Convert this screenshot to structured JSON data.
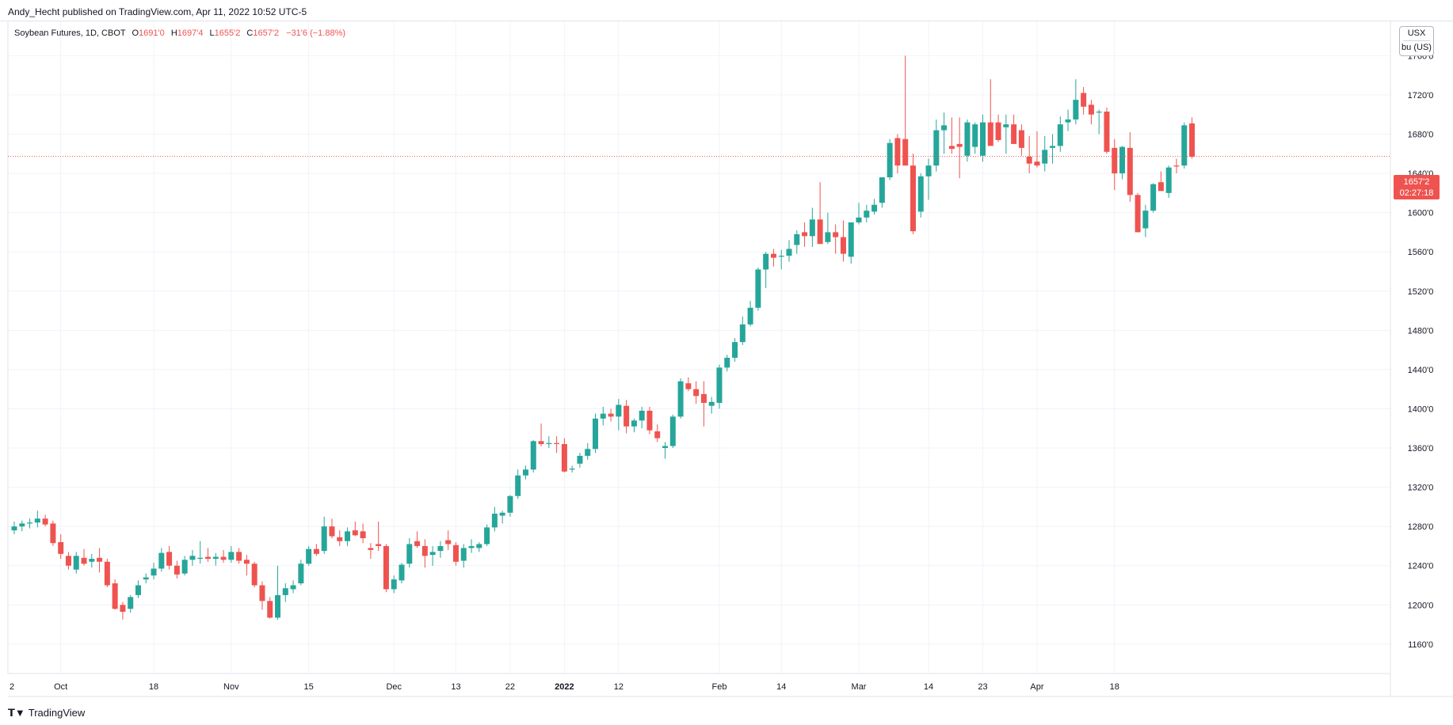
{
  "header": {
    "published": "Andy_Hecht published on TradingView.com, Apr 11, 2022 10:52 UTC-5"
  },
  "legend": {
    "symbol": "Soybean Futures, 1D, CBOT",
    "o_label": "O",
    "o_value": "1691'0",
    "h_label": "H",
    "h_value": "1697'4",
    "l_label": "L",
    "l_value": "1655'2",
    "c_label": "C",
    "c_value": "1657'2",
    "change": "−31'6 (−1.88%)"
  },
  "unit_box": {
    "currency": "USX",
    "unit": "bu (US)"
  },
  "last_price": {
    "price": "1657'2",
    "countdown": "02:27:18"
  },
  "footer": {
    "brand": "TradingView",
    "brand_icon": "tradingview-logo-icon"
  },
  "colors": {
    "up": "#26a69a",
    "down": "#ef5350",
    "grid": "#f0f3fa",
    "axis_text": "#131722"
  },
  "chart_data": {
    "type": "candlestick",
    "title": "Soybean Futures, 1D, CBOT",
    "ylabel": "USX / bu (US)",
    "ylim": [
      1130,
      1795
    ],
    "y_ticks": [
      {
        "value": 1160,
        "label": "1160'0"
      },
      {
        "value": 1200,
        "label": "1200'0"
      },
      {
        "value": 1240,
        "label": "1240'0"
      },
      {
        "value": 1280,
        "label": "1280'0"
      },
      {
        "value": 1320,
        "label": "1320'0"
      },
      {
        "value": 1360,
        "label": "1360'0"
      },
      {
        "value": 1400,
        "label": "1400'0"
      },
      {
        "value": 1440,
        "label": "1440'0"
      },
      {
        "value": 1480,
        "label": "1480'0"
      },
      {
        "value": 1520,
        "label": "1520'0"
      },
      {
        "value": 1560,
        "label": "1560'0"
      },
      {
        "value": 1600,
        "label": "1600'0"
      },
      {
        "value": 1640,
        "label": "1640'0"
      },
      {
        "value": 1680,
        "label": "1680'0"
      },
      {
        "value": 1720,
        "label": "1720'0"
      },
      {
        "value": 1760,
        "label": "1760'0"
      }
    ],
    "x_ticks": [
      {
        "index": -1,
        "label": "2"
      },
      {
        "index": 6,
        "label": "Oct"
      },
      {
        "index": 18,
        "label": "18"
      },
      {
        "index": 28,
        "label": "Nov"
      },
      {
        "index": 38,
        "label": "15"
      },
      {
        "index": 49,
        "label": "Dec"
      },
      {
        "index": 57,
        "label": "13"
      },
      {
        "index": 64,
        "label": "22"
      },
      {
        "index": 71,
        "label": "2022"
      },
      {
        "index": 78,
        "label": "12"
      },
      {
        "index": 91,
        "label": "Feb"
      },
      {
        "index": 99,
        "label": "14"
      },
      {
        "index": 109,
        "label": "Mar"
      },
      {
        "index": 118,
        "label": "14"
      },
      {
        "index": 125,
        "label": "23"
      },
      {
        "index": 132,
        "label": "Apr"
      },
      {
        "index": 142,
        "label": "18"
      }
    ],
    "last_price_value": 1657.25,
    "candles": [
      [
        1276,
        1285,
        1272,
        1280
      ],
      [
        1280,
        1286,
        1275,
        1283
      ],
      [
        1283,
        1288,
        1278,
        1284
      ],
      [
        1284,
        1296,
        1279,
        1288
      ],
      [
        1288,
        1292,
        1280,
        1282
      ],
      [
        1283,
        1286,
        1260,
        1263
      ],
      [
        1264,
        1272,
        1247,
        1252
      ],
      [
        1250,
        1254,
        1236,
        1240
      ],
      [
        1236,
        1254,
        1232,
        1250
      ],
      [
        1248,
        1257,
        1240,
        1242
      ],
      [
        1244,
        1252,
        1238,
        1247
      ],
      [
        1248,
        1258,
        1233,
        1244
      ],
      [
        1244,
        1247,
        1218,
        1220
      ],
      [
        1222,
        1226,
        1195,
        1196
      ],
      [
        1200,
        1203,
        1185,
        1193
      ],
      [
        1196,
        1210,
        1192,
        1208
      ],
      [
        1210,
        1225,
        1207,
        1220
      ],
      [
        1226,
        1232,
        1222,
        1228
      ],
      [
        1230,
        1243,
        1226,
        1237
      ],
      [
        1237,
        1258,
        1234,
        1253
      ],
      [
        1254,
        1260,
        1236,
        1240
      ],
      [
        1240,
        1245,
        1227,
        1231
      ],
      [
        1232,
        1250,
        1230,
        1246
      ],
      [
        1246,
        1256,
        1240,
        1250
      ],
      [
        1247,
        1265,
        1242,
        1248
      ],
      [
        1249,
        1258,
        1244,
        1247
      ],
      [
        1247,
        1253,
        1240,
        1249
      ],
      [
        1249,
        1256,
        1243,
        1246
      ],
      [
        1246,
        1260,
        1243,
        1254
      ],
      [
        1254,
        1258,
        1242,
        1245
      ],
      [
        1246,
        1251,
        1230,
        1242
      ],
      [
        1242,
        1244,
        1218,
        1220
      ],
      [
        1220,
        1224,
        1195,
        1204
      ],
      [
        1204,
        1208,
        1186,
        1187
      ],
      [
        1187,
        1240,
        1185,
        1210
      ],
      [
        1210,
        1222,
        1203,
        1217
      ],
      [
        1216,
        1225,
        1212,
        1220
      ],
      [
        1222,
        1246,
        1220,
        1242
      ],
      [
        1242,
        1260,
        1240,
        1257
      ],
      [
        1257,
        1262,
        1250,
        1252
      ],
      [
        1255,
        1290,
        1252,
        1280
      ],
      [
        1280,
        1288,
        1268,
        1270
      ],
      [
        1269,
        1276,
        1260,
        1265
      ],
      [
        1265,
        1279,
        1260,
        1275
      ],
      [
        1276,
        1285,
        1270,
        1271
      ],
      [
        1275,
        1283,
        1263,
        1268
      ],
      [
        1258,
        1263,
        1247,
        1256
      ],
      [
        1262,
        1285,
        1255,
        1260
      ],
      [
        1260,
        1262,
        1213,
        1216
      ],
      [
        1216,
        1230,
        1212,
        1226
      ],
      [
        1225,
        1243,
        1222,
        1241
      ],
      [
        1242,
        1268,
        1238,
        1262
      ],
      [
        1265,
        1275,
        1258,
        1260
      ],
      [
        1260,
        1267,
        1238,
        1250
      ],
      [
        1251,
        1260,
        1240,
        1254
      ],
      [
        1255,
        1265,
        1248,
        1260
      ],
      [
        1266,
        1276,
        1256,
        1262
      ],
      [
        1261,
        1264,
        1240,
        1244
      ],
      [
        1245,
        1262,
        1238,
        1258
      ],
      [
        1258,
        1267,
        1253,
        1260
      ],
      [
        1258,
        1264,
        1254,
        1262
      ],
      [
        1262,
        1282,
        1260,
        1279
      ],
      [
        1279,
        1300,
        1275,
        1293
      ],
      [
        1291,
        1296,
        1283,
        1294
      ],
      [
        1294,
        1312,
        1290,
        1311
      ],
      [
        1311,
        1338,
        1308,
        1332
      ],
      [
        1332,
        1342,
        1328,
        1338
      ],
      [
        1338,
        1368,
        1335,
        1367
      ],
      [
        1367,
        1385,
        1362,
        1364
      ],
      [
        1364,
        1372,
        1360,
        1365
      ],
      [
        1365,
        1372,
        1355,
        1364
      ],
      [
        1364,
        1370,
        1335,
        1336
      ],
      [
        1338,
        1342,
        1335,
        1339
      ],
      [
        1344,
        1355,
        1340,
        1352
      ],
      [
        1352,
        1365,
        1348,
        1359
      ],
      [
        1359,
        1395,
        1355,
        1390
      ],
      [
        1390,
        1402,
        1383,
        1395
      ],
      [
        1395,
        1400,
        1387,
        1392
      ],
      [
        1392,
        1410,
        1378,
        1404
      ],
      [
        1403,
        1409,
        1375,
        1382
      ],
      [
        1382,
        1390,
        1376,
        1388
      ],
      [
        1388,
        1402,
        1380,
        1398
      ],
      [
        1398,
        1402,
        1374,
        1378
      ],
      [
        1377,
        1384,
        1366,
        1370
      ],
      [
        1360,
        1366,
        1349,
        1362
      ],
      [
        1362,
        1394,
        1360,
        1392
      ],
      [
        1392,
        1431,
        1390,
        1428
      ],
      [
        1426,
        1432,
        1418,
        1420
      ],
      [
        1420,
        1428,
        1405,
        1413
      ],
      [
        1415,
        1428,
        1382,
        1406
      ],
      [
        1403,
        1412,
        1395,
        1407
      ],
      [
        1406,
        1445,
        1400,
        1442
      ],
      [
        1442,
        1455,
        1438,
        1452
      ],
      [
        1452,
        1472,
        1448,
        1468
      ],
      [
        1468,
        1494,
        1465,
        1486
      ],
      [
        1486,
        1510,
        1484,
        1503
      ],
      [
        1503,
        1544,
        1500,
        1542
      ],
      [
        1542,
        1560,
        1523,
        1558
      ],
      [
        1558,
        1563,
        1545,
        1554
      ],
      [
        1555,
        1562,
        1542,
        1556
      ],
      [
        1556,
        1572,
        1550,
        1563
      ],
      [
        1567,
        1582,
        1558,
        1578
      ],
      [
        1580,
        1590,
        1565,
        1576
      ],
      [
        1576,
        1605,
        1565,
        1593
      ],
      [
        1593,
        1631,
        1570,
        1568
      ],
      [
        1570,
        1600,
        1568,
        1580
      ],
      [
        1580,
        1588,
        1558,
        1575
      ],
      [
        1575,
        1592,
        1550,
        1558
      ],
      [
        1555,
        1590,
        1548,
        1590
      ],
      [
        1590,
        1610,
        1588,
        1595
      ],
      [
        1595,
        1608,
        1590,
        1602
      ],
      [
        1601,
        1614,
        1598,
        1608
      ],
      [
        1610,
        1630,
        1605,
        1636
      ],
      [
        1636,
        1675,
        1633,
        1671
      ],
      [
        1676,
        1680,
        1640,
        1648
      ],
      [
        1675,
        1760,
        1648,
        1648
      ],
      [
        1648,
        1660,
        1578,
        1581
      ],
      [
        1601,
        1640,
        1595,
        1637
      ],
      [
        1637,
        1655,
        1613,
        1648
      ],
      [
        1648,
        1695,
        1642,
        1684
      ],
      [
        1684,
        1702,
        1660,
        1689
      ],
      [
        1668,
        1697,
        1660,
        1665
      ],
      [
        1670,
        1697,
        1635,
        1667
      ],
      [
        1658,
        1695,
        1652,
        1692
      ],
      [
        1667,
        1692,
        1660,
        1690
      ],
      [
        1658,
        1700,
        1652,
        1692
      ],
      [
        1692,
        1736,
        1672,
        1668
      ],
      [
        1692,
        1700,
        1672,
        1674
      ],
      [
        1687,
        1700,
        1660,
        1690
      ],
      [
        1690,
        1700,
        1670,
        1670
      ],
      [
        1684,
        1690,
        1658,
        1666
      ],
      [
        1657,
        1678,
        1640,
        1650
      ],
      [
        1652,
        1683,
        1646,
        1648
      ],
      [
        1650,
        1678,
        1642,
        1664
      ],
      [
        1666,
        1680,
        1650,
        1668
      ],
      [
        1668,
        1698,
        1662,
        1690
      ],
      [
        1692,
        1705,
        1683,
        1695
      ],
      [
        1695,
        1736,
        1690,
        1715
      ],
      [
        1722,
        1728,
        1700,
        1708
      ],
      [
        1710,
        1715,
        1690,
        1700
      ],
      [
        1702,
        1705,
        1680,
        1703
      ],
      [
        1703,
        1707,
        1660,
        1662
      ],
      [
        1666,
        1675,
        1623,
        1640
      ],
      [
        1640,
        1668,
        1634,
        1667
      ],
      [
        1666,
        1682,
        1611,
        1618
      ],
      [
        1618,
        1620,
        1580,
        1580
      ],
      [
        1584,
        1608,
        1575,
        1602
      ],
      [
        1602,
        1630,
        1600,
        1629
      ],
      [
        1631,
        1642,
        1624,
        1622
      ],
      [
        1620,
        1648,
        1615,
        1646
      ],
      [
        1648,
        1655,
        1640,
        1647
      ],
      [
        1648,
        1692,
        1645,
        1689
      ],
      [
        1691,
        1697,
        1655,
        1657
      ]
    ]
  }
}
